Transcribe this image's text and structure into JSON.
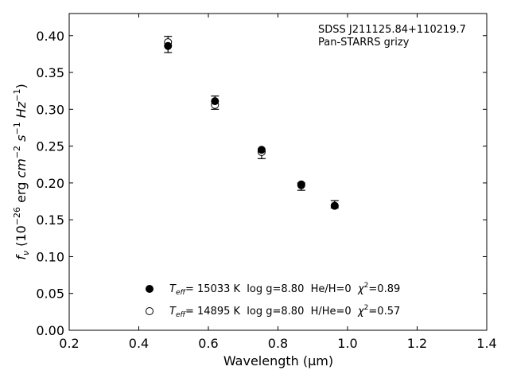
{
  "chart_data": {
    "type": "scatter",
    "xlabel": "Wavelength (μm)",
    "ylabel_parts": {
      "f": "f",
      "nu": "ν",
      "base": " (10",
      "exp26": "−26",
      "erg": " erg ",
      "cm": "cm",
      "expm2": "−2",
      "s": "s",
      "expm1a": "−1",
      "hz": "Hz",
      "expm1b": "−1",
      "close": ")"
    },
    "xlim": [
      0.2,
      1.4
    ],
    "ylim": [
      0.0,
      0.43
    ],
    "x_ticks": [
      "0.2",
      "0.4",
      "0.6",
      "0.8",
      "1.0",
      "1.2",
      "1.4"
    ],
    "y_ticks": [
      "0.00",
      "0.05",
      "0.10",
      "0.15",
      "0.20",
      "0.25",
      "0.30",
      "0.35",
      "0.40"
    ],
    "annotation": [
      "SDSS J211125.84+110219.7",
      "Pan-STARRS grizy"
    ],
    "observed": {
      "x": [
        0.484,
        0.619,
        0.753,
        0.867,
        0.963
      ],
      "y": [
        0.388,
        0.309,
        0.238,
        0.195,
        0.171
      ],
      "err": [
        0.011,
        0.009,
        0.005,
        0.005,
        0.005
      ]
    },
    "series": [
      {
        "name": "He/H=0",
        "marker": "filled-circle",
        "x": [
          0.484,
          0.619,
          0.753,
          0.867,
          0.963
        ],
        "y": [
          0.386,
          0.311,
          0.245,
          0.198,
          0.169
        ],
        "legend": {
          "T": "T",
          "eff": "eff",
          "rest": "= 15033 K  log g=8.80  He/H=0  ",
          "chi": "χ",
          "two": "2",
          "val": "=0.89"
        }
      },
      {
        "name": "H/He=0",
        "marker": "open-circle",
        "x": [
          0.484,
          0.619,
          0.753,
          0.867,
          0.963
        ],
        "y": [
          0.391,
          0.306,
          0.242,
          0.197,
          0.169
        ],
        "legend": {
          "T": "T",
          "eff": "eff",
          "rest": "= 14895 K  log g=8.80  H/He=0  ",
          "chi": "χ",
          "two": "2",
          "val": "=0.57"
        }
      }
    ]
  }
}
